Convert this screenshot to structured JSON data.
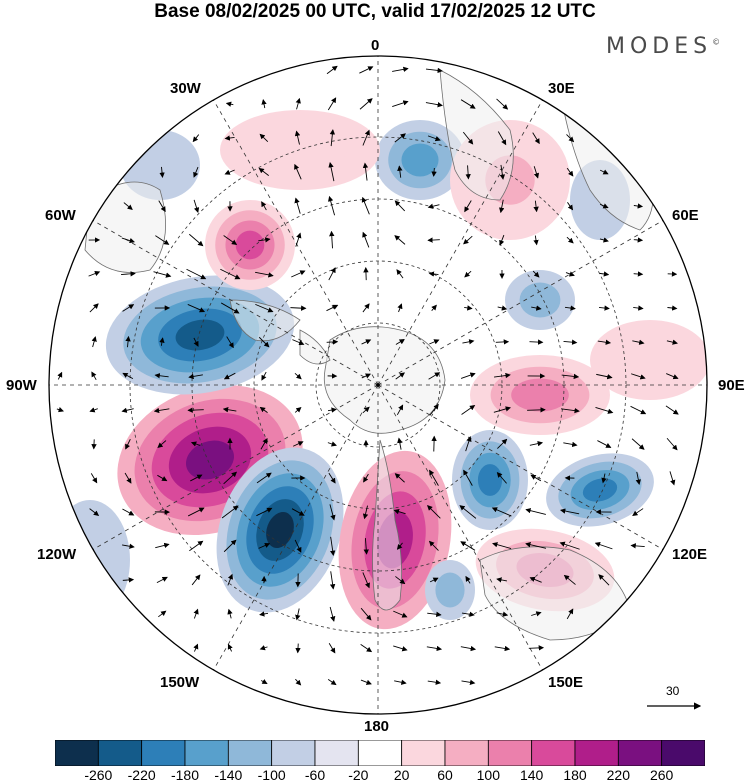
{
  "title": "Base 08/02/2025 00 UTC, valid 17/02/2025 12 UTC",
  "brand": "MODES",
  "brand_mark": "©",
  "longitude_labels": {
    "lon_0": "0",
    "lon_30e": "30E",
    "lon_60e": "60E",
    "lon_90e": "90E",
    "lon_120e": "120E",
    "lon_150e": "150E",
    "lon_180": "180",
    "lon_150w": "150W",
    "lon_120w": "120W",
    "lon_90w": "90W",
    "lon_60w": "60W",
    "lon_30w": "30W"
  },
  "reference_vector": "30",
  "colorbar": {
    "ticks": [
      "-260",
      "-220",
      "-180",
      "-140",
      "-100",
      "-60",
      "-20",
      "20",
      "60",
      "100",
      "140",
      "180",
      "220",
      "260"
    ],
    "colors": [
      "#0d2f4d",
      "#145b8a",
      "#2d7fb8",
      "#58a0cc",
      "#8fb8d9",
      "#c2cfe5",
      "#e4e4f0",
      "#ffffff",
      "#fbd7de",
      "#f5aec2",
      "#eb80ac",
      "#d94a9b",
      "#b01e8a",
      "#7a1080",
      "#4a0a6b"
    ]
  },
  "colors": {
    "land": "#efefef",
    "coast": "#6e6e6e",
    "grid": "#333333"
  }
}
